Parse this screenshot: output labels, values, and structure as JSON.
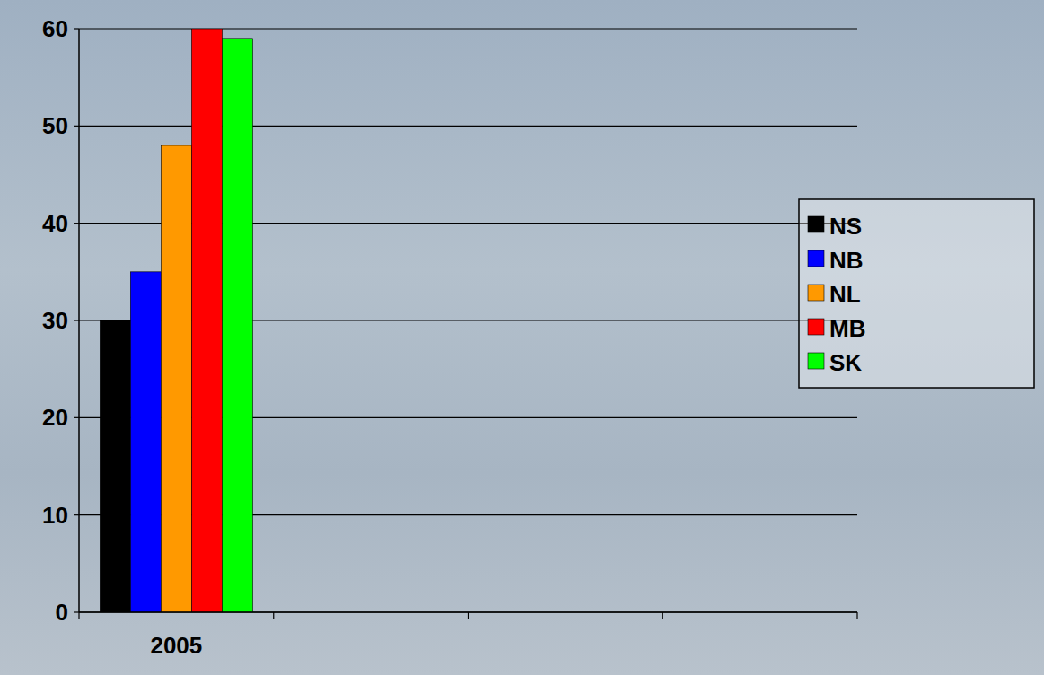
{
  "chart_data": {
    "type": "bar",
    "categories": [
      "2005",
      null,
      null,
      null
    ],
    "series": [
      {
        "name": "NS",
        "color": "#000000",
        "values": [
          30,
          null,
          null,
          null
        ]
      },
      {
        "name": "NB",
        "color": "#0000ff",
        "values": [
          35,
          null,
          null,
          null
        ]
      },
      {
        "name": "NL",
        "color": "#ff9900",
        "values": [
          48,
          null,
          null,
          null
        ]
      },
      {
        "name": "MB",
        "color": "#ff0000",
        "values": [
          60,
          null,
          null,
          null
        ]
      },
      {
        "name": "SK",
        "color": "#00ff00",
        "values": [
          59,
          null,
          null,
          null
        ]
      }
    ],
    "ylim": [
      0,
      60
    ],
    "yticks": [
      0,
      10,
      20,
      30,
      40,
      50,
      60
    ],
    "grid": true,
    "legend": "right"
  }
}
